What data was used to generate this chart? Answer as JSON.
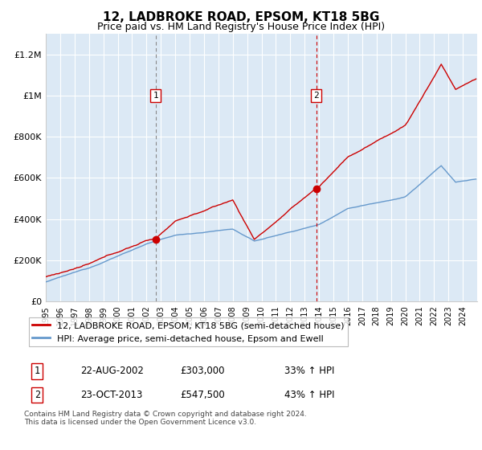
{
  "title": "12, LADBROKE ROAD, EPSOM, KT18 5BG",
  "subtitle": "Price paid vs. HM Land Registry's House Price Index (HPI)",
  "ylabel_ticks": [
    "£0",
    "£200K",
    "£400K",
    "£600K",
    "£800K",
    "£1M",
    "£1.2M"
  ],
  "ytick_values": [
    0,
    200000,
    400000,
    600000,
    800000,
    1000000,
    1200000
  ],
  "ylim": [
    0,
    1300000
  ],
  "xlim_start": 1995.0,
  "xlim_end": 2025.0,
  "background_color": "#dce9f5",
  "grid_color": "#ffffff",
  "red_line_color": "#cc0000",
  "blue_line_color": "#6699cc",
  "sale1_date": 2002.64,
  "sale1_price": 303000,
  "sale2_date": 2013.81,
  "sale2_price": 547500,
  "legend_label1": "12, LADBROKE ROAD, EPSOM, KT18 5BG (semi-detached house)",
  "legend_label2": "HPI: Average price, semi-detached house, Epsom and Ewell",
  "table_row1": [
    "1",
    "22-AUG-2002",
    "£303,000",
    "33% ↑ HPI"
  ],
  "table_row2": [
    "2",
    "23-OCT-2013",
    "£547,500",
    "43% ↑ HPI"
  ],
  "footer_text": "Contains HM Land Registry data © Crown copyright and database right 2024.\nThis data is licensed under the Open Government Licence v3.0."
}
